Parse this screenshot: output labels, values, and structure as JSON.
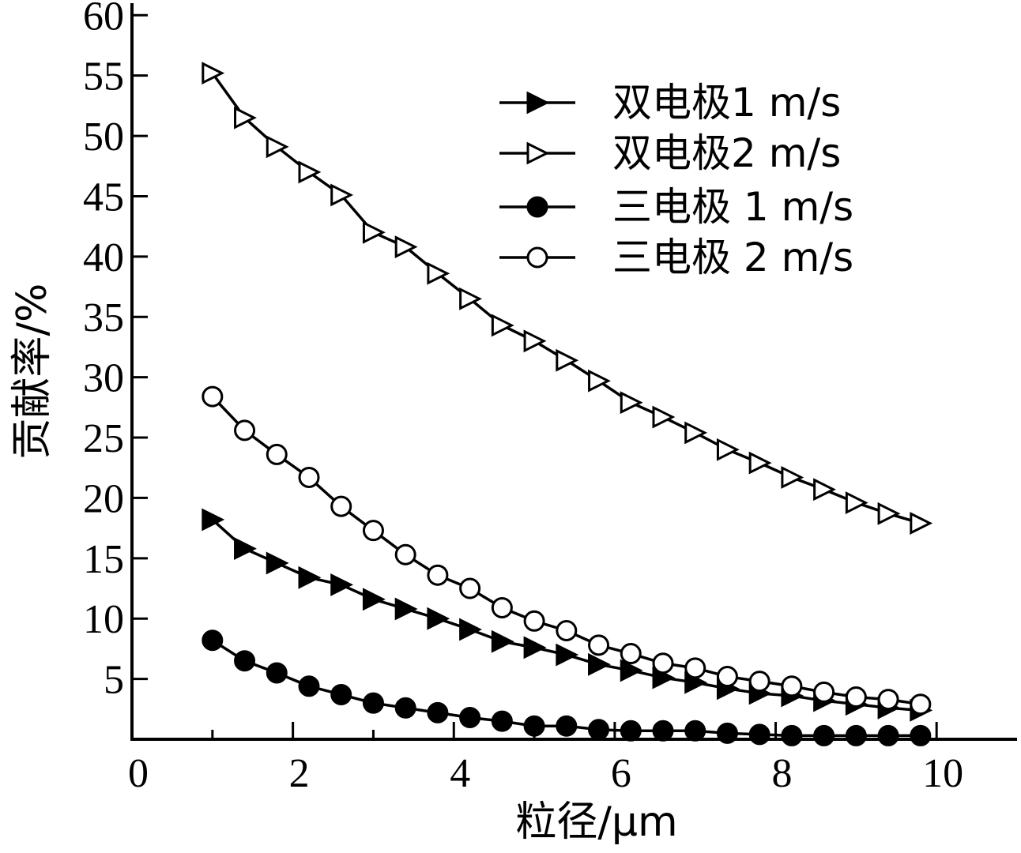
{
  "chart_data": {
    "type": "line",
    "xlabel": "粒径/μm",
    "ylabel": "贡献率/%",
    "xlim": [
      0,
      11
    ],
    "ylim": [
      0,
      61
    ],
    "x_ticks": [
      "0",
      "2",
      "4",
      "6",
      "8",
      "10"
    ],
    "y_ticks": [
      "5",
      "10",
      "15",
      "20",
      "25",
      "30",
      "35",
      "40",
      "45",
      "50",
      "55",
      "60"
    ],
    "legend_position": "top-right",
    "x": [
      1.0,
      1.4,
      1.8,
      2.2,
      2.6,
      3.0,
      3.4,
      3.8,
      4.2,
      4.6,
      5.0,
      5.4,
      5.8,
      6.2,
      6.6,
      7.0,
      7.4,
      7.8,
      8.2,
      8.6,
      9.0,
      9.4,
      9.8
    ],
    "series": [
      {
        "name": "双电极1 m/s",
        "marker": "triangle-right-filled",
        "values": [
          18.2,
          15.8,
          14.6,
          13.4,
          12.8,
          11.6,
          10.8,
          10.0,
          9.1,
          8.1,
          7.6,
          7.0,
          6.2,
          5.7,
          5.1,
          4.7,
          4.2,
          3.8,
          3.6,
          3.2,
          2.9,
          2.6,
          2.4
        ]
      },
      {
        "name": "双电极2 m/s",
        "marker": "triangle-right-open",
        "values": [
          55.2,
          51.5,
          49.1,
          47.0,
          45.1,
          42.0,
          40.8,
          38.6,
          36.5,
          34.3,
          33.0,
          31.4,
          29.7,
          27.9,
          26.7,
          25.4,
          24.0,
          22.9,
          21.7,
          20.7,
          19.6,
          18.7,
          17.9
        ]
      },
      {
        "name": "三电极 1 m/s",
        "marker": "circle-filled",
        "values": [
          8.2,
          6.5,
          5.5,
          4.4,
          3.7,
          3.0,
          2.6,
          2.2,
          1.8,
          1.5,
          1.1,
          1.1,
          0.8,
          0.7,
          0.7,
          0.7,
          0.5,
          0.4,
          0.3,
          0.3,
          0.3,
          0.3,
          0.3
        ]
      },
      {
        "name": "三电极 2 m/s",
        "marker": "circle-open",
        "values": [
          28.4,
          25.6,
          23.6,
          21.7,
          19.3,
          17.3,
          15.3,
          13.6,
          12.5,
          10.9,
          9.8,
          9.0,
          7.8,
          7.1,
          6.3,
          5.9,
          5.2,
          4.8,
          4.4,
          3.9,
          3.5,
          3.3,
          2.9
        ]
      }
    ]
  }
}
